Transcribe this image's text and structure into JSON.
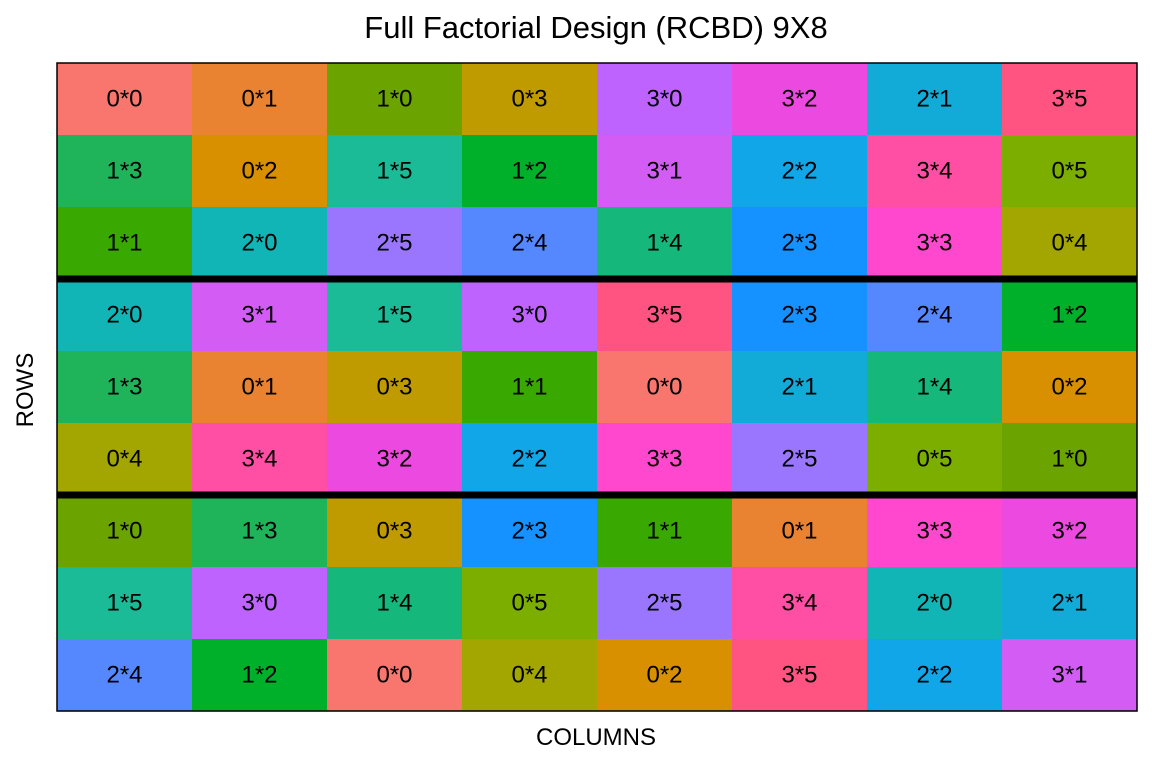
{
  "chart_data": {
    "type": "heatmap",
    "title": "Full Factorial Design (RCBD) 9X8",
    "xlabel": "COLUMNS",
    "ylabel": "ROWS",
    "n_rows": 9,
    "n_cols": 8,
    "block_boundaries_after_rows": [
      3,
      6
    ],
    "cells": [
      [
        "0*0",
        "0*1",
        "1*0",
        "0*3",
        "3*0",
        "3*2",
        "2*1",
        "3*5"
      ],
      [
        "1*3",
        "0*2",
        "1*5",
        "1*2",
        "3*1",
        "2*2",
        "3*4",
        "0*5"
      ],
      [
        "1*1",
        "2*0",
        "2*5",
        "2*4",
        "1*4",
        "2*3",
        "3*3",
        "0*4"
      ],
      [
        "2*0",
        "3*1",
        "1*5",
        "3*0",
        "3*5",
        "2*3",
        "2*4",
        "1*2"
      ],
      [
        "1*3",
        "0*1",
        "0*3",
        "1*1",
        "0*0",
        "2*1",
        "1*4",
        "0*2"
      ],
      [
        "0*4",
        "3*4",
        "3*2",
        "2*2",
        "3*3",
        "2*5",
        "0*5",
        "1*0"
      ],
      [
        "1*0",
        "1*3",
        "0*3",
        "2*3",
        "1*1",
        "0*1",
        "3*3",
        "3*2"
      ],
      [
        "1*5",
        "3*0",
        "1*4",
        "0*5",
        "2*5",
        "3*4",
        "2*0",
        "2*1"
      ],
      [
        "2*4",
        "1*2",
        "0*0",
        "0*4",
        "0*2",
        "3*5",
        "2*2",
        "3*1"
      ]
    ],
    "treatment_colors": {
      "0*0": "#F8766D",
      "0*1": "#EA8331",
      "0*2": "#D89000",
      "0*3": "#C09B00",
      "0*4": "#A3A500",
      "0*5": "#7CAE00",
      "1*0": "#6BA300",
      "1*1": "#39A800",
      "1*2": "#00B02A",
      "1*3": "#1FB35A",
      "1*4": "#16B77A",
      "1*5": "#1ABB96",
      "2*0": "#12B5B5",
      "2*1": "#12AAD6",
      "2*2": "#10A6E8",
      "2*3": "#1592FF",
      "2*4": "#5588FF",
      "2*5": "#9A76FF",
      "3*0": "#BF63FF",
      "3*1": "#D35CF5",
      "3*2": "#EC49E0",
      "3*3": "#FF48CE",
      "3*4": "#FF4FA5",
      "3*5": "#FF5482"
    }
  }
}
